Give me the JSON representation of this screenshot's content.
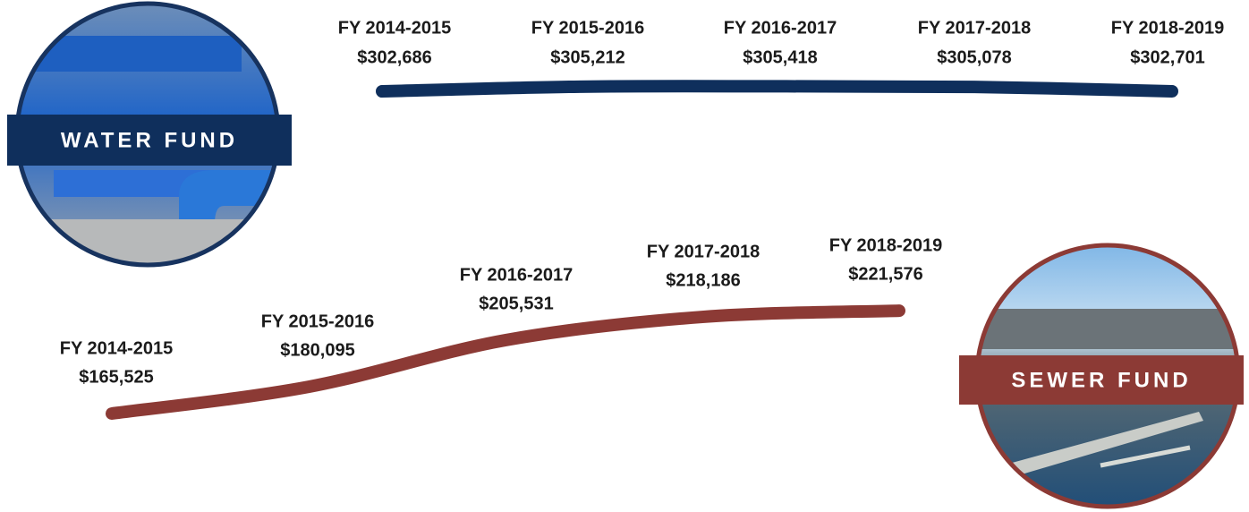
{
  "chart_data": [
    {
      "type": "line",
      "title": "WATER FUND",
      "categories": [
        "FY 2014-2015",
        "FY 2015-2016",
        "FY 2016-2017",
        "FY 2017-2018",
        "FY 2018-2019"
      ],
      "values": [
        302686,
        305212,
        305418,
        305078,
        302701
      ],
      "value_labels": [
        "$302,686",
        "$305,212",
        "$305,418",
        "$305,078",
        "$302,701"
      ],
      "color": "#0f2f5c"
    },
    {
      "type": "line",
      "title": "SEWER FUND",
      "categories": [
        "FY 2014-2015",
        "FY 2015-2016",
        "FY 2016-2017",
        "FY 2017-2018",
        "FY 2018-2019"
      ],
      "values": [
        165525,
        180095,
        205531,
        218186,
        221576
      ],
      "value_labels": [
        "$165,525",
        "$180,095",
        "$205,531",
        "$218,186",
        "$221,576"
      ],
      "color": "#8c3a35"
    }
  ]
}
